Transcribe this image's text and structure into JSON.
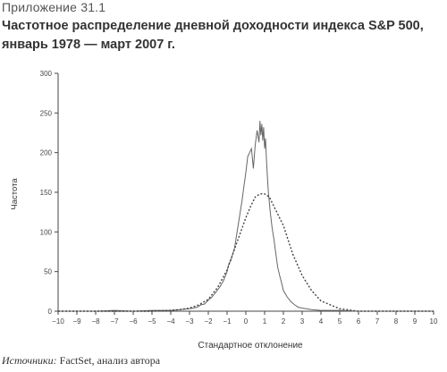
{
  "exhibit_label": "Приложение 31.1",
  "title_line1": "Частотное распределение дневной доходности индекса S&P 500,",
  "title_line2": "январь 1978 — март 2007 г.",
  "source": {
    "label": "Источники:",
    "text": " FactSet, анализ автора"
  },
  "chart_data": {
    "type": "line",
    "xlabel": "Стандартное отклонение",
    "ylabel": "Частота",
    "xlim": [
      -10,
      10
    ],
    "ylim": [
      0,
      300
    ],
    "xticks": [
      -10,
      -9,
      -8,
      -7,
      -6,
      -5,
      -4,
      -3,
      -2,
      -1,
      0,
      1,
      2,
      3,
      4,
      5,
      6,
      7,
      8,
      9,
      10
    ],
    "yticks": [
      0,
      50,
      100,
      150,
      200,
      250,
      300
    ],
    "grid": false,
    "series": [
      {
        "style": "solid",
        "color": "#666666",
        "x": [
          -10,
          -9,
          -8,
          -7,
          -6,
          -5,
          -4,
          -3.5,
          -3,
          -2.8,
          -2.6,
          -2.4,
          -2.2,
          -2.0,
          -1.8,
          -1.6,
          -1.4,
          -1.2,
          -1.0,
          -0.9,
          -0.8,
          -0.7,
          -0.6,
          -0.5,
          -0.4,
          -0.3,
          -0.2,
          -0.1,
          0.0,
          0.1,
          0.2,
          0.3,
          0.4,
          0.5,
          0.6,
          0.7,
          0.75,
          0.8,
          0.85,
          0.9,
          0.95,
          1.0,
          1.05,
          1.1,
          1.15,
          1.2,
          1.3,
          1.4,
          1.5,
          1.6,
          1.7,
          1.8,
          1.9,
          2.0,
          2.2,
          2.4,
          2.6,
          2.8,
          3.0,
          3.5,
          4,
          5,
          6,
          7,
          8,
          9,
          10
        ],
        "y": [
          0,
          0,
          0,
          1,
          0,
          1,
          1,
          2,
          3,
          4,
          5,
          8,
          9,
          14,
          18,
          24,
          30,
          38,
          50,
          60,
          64,
          72,
          80,
          95,
          110,
          125,
          140,
          158,
          175,
          195,
          200,
          205,
          180,
          210,
          228,
          213,
          240,
          222,
          236,
          215,
          232,
          205,
          218,
          190,
          170,
          150,
          125,
          105,
          90,
          72,
          55,
          45,
          36,
          26,
          18,
          12,
          8,
          5,
          4,
          2,
          1,
          1,
          0,
          0,
          0,
          0,
          0
        ]
      },
      {
        "style": "dotted",
        "color": "#444444",
        "x": [
          -10,
          -9,
          -8,
          -7,
          -6,
          -5,
          -4,
          -3.5,
          -3,
          -2.5,
          -2,
          -1.5,
          -1,
          -0.5,
          0,
          0.25,
          0.5,
          0.75,
          1.0,
          1.25,
          1.5,
          2,
          2.5,
          3,
          3.5,
          4,
          5,
          6,
          7,
          8,
          9,
          10
        ],
        "y": [
          0,
          0,
          0,
          0,
          0,
          0,
          1,
          2,
          4,
          8,
          15,
          30,
          52,
          85,
          118,
          132,
          144,
          148,
          148,
          144,
          132,
          108,
          72,
          45,
          26,
          13,
          3,
          0,
          0,
          0,
          0,
          0
        ]
      }
    ]
  }
}
